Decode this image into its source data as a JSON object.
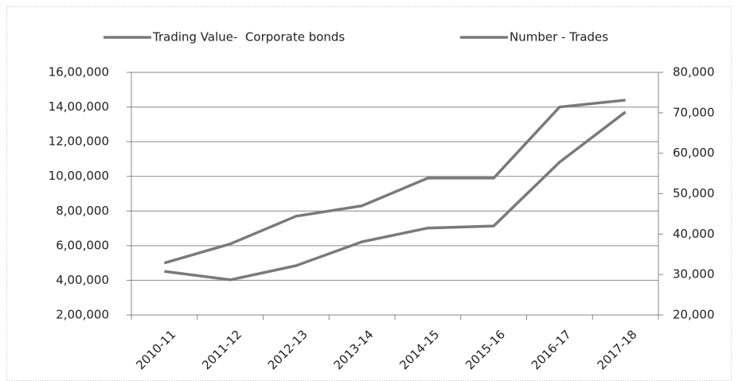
{
  "chart_data": {
    "type": "line",
    "categories": [
      "2010-11",
      "2011-12",
      "2012-13",
      "2013-14",
      "2014-15",
      "2015-16",
      "2016-17",
      "2017-18"
    ],
    "series": [
      {
        "name": "Trading Value-  Corporate bonds",
        "color": "#7a7a7a",
        "values": [
          500000,
          610000,
          770000,
          830000,
          990000,
          990000,
          1400000,
          1440000
        ]
      },
      {
        "name": "Number - Trades",
        "color": "#7a7a7a",
        "axis": "y2",
        "values": [
          30800,
          28700,
          32200,
          38100,
          41500,
          42000,
          57800,
          70200
        ]
      }
    ],
    "ylim": [
      200000,
      1600000
    ],
    "yticks": [
      {
        "value": 200000,
        "label": "2,00,000"
      },
      {
        "value": 400000,
        "label": "4,00,000"
      },
      {
        "value": 600000,
        "label": "6,00,000"
      },
      {
        "value": 800000,
        "label": "8,00,000"
      },
      {
        "value": 1000000,
        "label": "10,00,000"
      },
      {
        "value": 1200000,
        "label": "12,00,000"
      },
      {
        "value": 1400000,
        "label": "14,00,000"
      },
      {
        "value": 1600000,
        "label": "16,00,000"
      }
    ],
    "y2lim": [
      20000,
      80000
    ],
    "y2ticks": [
      {
        "value": 20000,
        "label": "20,000"
      },
      {
        "value": 30000,
        "label": "30,000"
      },
      {
        "value": 40000,
        "label": "40,000"
      },
      {
        "value": 50000,
        "label": "50,000"
      },
      {
        "value": 60000,
        "label": "60,000"
      },
      {
        "value": 70000,
        "label": "70,000"
      },
      {
        "value": 80000,
        "label": "80,000"
      }
    ],
    "grid": true,
    "legend": "top"
  }
}
